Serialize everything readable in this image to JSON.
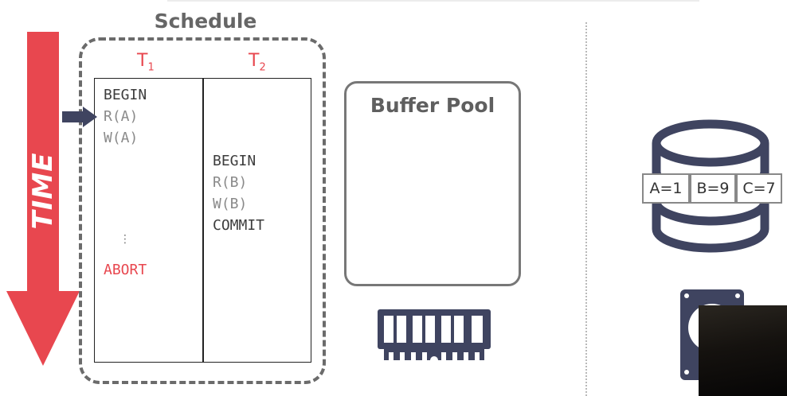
{
  "time_label": "TIME",
  "schedule": {
    "title": "Schedule",
    "t1": {
      "letter": "T",
      "sub": "1"
    },
    "t2": {
      "letter": "T",
      "sub": "2"
    },
    "t1_ops": {
      "begin": "BEGIN",
      "read": "R(A)",
      "write": "W(A)",
      "ellipsis": "⋮",
      "abort": "ABORT"
    },
    "t2_ops": {
      "begin": "BEGIN",
      "read": "R(B)",
      "write": "W(B)",
      "commit": "COMMIT"
    }
  },
  "buffer_pool": {
    "title": "Buffer Pool"
  },
  "database": {
    "cells": [
      {
        "text": "A=1"
      },
      {
        "text": "B=9"
      },
      {
        "text": "C=7"
      }
    ]
  },
  "colors": {
    "accent_red": "#e8474f",
    "icon_navy": "#3f4460",
    "frame_gray": "#6b6b6b"
  },
  "icons": [
    "time-arrow",
    "pointer-arrow",
    "ram-icon",
    "database-icon",
    "disk-icon"
  ]
}
